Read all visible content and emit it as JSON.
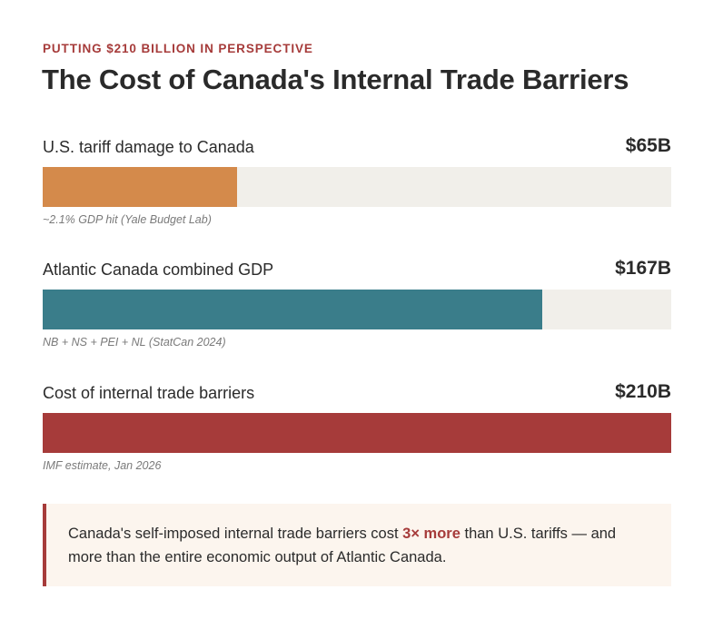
{
  "eyebrow": "PUTTING $210 BILLION IN PERSPECTIVE",
  "title": "The Cost of Canada's Internal Trade Barriers",
  "chart_data": {
    "type": "bar",
    "orientation": "horizontal",
    "title": "The Cost of Canada's Internal Trade Barriers",
    "subtitle": "PUTTING $210 BILLION IN PERSPECTIVE",
    "unit": "billion CAD",
    "xlim": [
      0,
      210
    ],
    "categories": [
      "U.S. tariff damage to Canada",
      "Atlantic Canada combined GDP",
      "Cost of internal trade barriers"
    ],
    "values": [
      65,
      167,
      210
    ],
    "value_labels": [
      "$65B",
      "$167B",
      "$210B"
    ],
    "notes": [
      "~2.1% GDP hit (Yale Budget Lab)",
      "NB + NS + PEI + NL (StatCan 2024)",
      "IMF estimate, Jan 2026"
    ],
    "colors": [
      "#d48a4b",
      "#3a7d8a",
      "#a63b3a"
    ]
  },
  "callout": {
    "before": "Canada's self-imposed internal trade barriers cost ",
    "emphasis": "3× more",
    "after": " than U.S. tariffs — and more than the entire economic output of Atlantic Canada."
  },
  "colors": {
    "accent": "#a63b3a",
    "track": "#f1efea",
    "callout_bg": "#fcf5ee"
  }
}
